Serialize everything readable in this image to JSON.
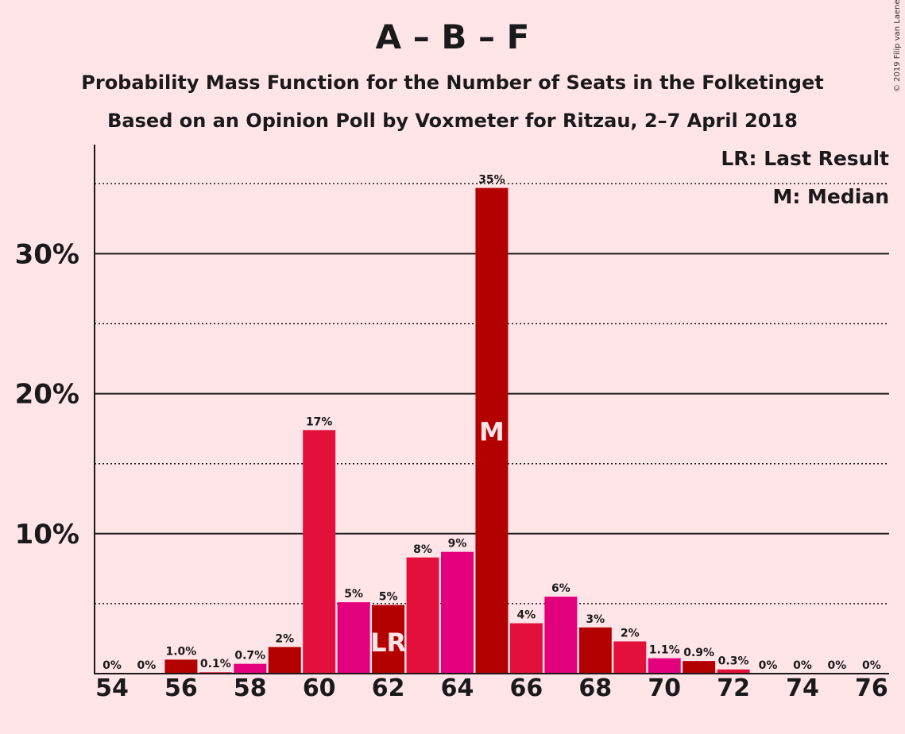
{
  "title": "A – B – F",
  "subtitle_1": "Probability Mass Function for the Number of Seats in the Folketinget",
  "subtitle_2": "Based on an Opinion Poll by Voxmeter for Ritzau, 2–7 April 2018",
  "copyright": "© 2019 Filip van Laenen",
  "legend": {
    "last_result": "LR: Last Result",
    "median": "M: Median"
  },
  "colors": {
    "background": "#FFE4E8",
    "dark_red": "#B30000",
    "crimson": "#E3103C",
    "magenta": "#E3007D"
  },
  "chart_data": {
    "type": "bar",
    "x": [
      54,
      55,
      56,
      57,
      58,
      59,
      60,
      61,
      62,
      63,
      64,
      65,
      66,
      67,
      68,
      69,
      70,
      71,
      72,
      73,
      74,
      75,
      76
    ],
    "values": [
      0,
      0,
      1.0,
      0.1,
      0.7,
      1.9,
      17.4,
      5.1,
      4.9,
      8.3,
      8.7,
      34.7,
      3.6,
      5.5,
      3.3,
      2.3,
      1.1,
      0.9,
      0.3,
      0,
      0,
      0,
      0
    ],
    "value_labels": [
      "0%",
      "0%",
      "1.0%",
      "0.1%",
      "0.7%",
      "2%",
      "17%",
      "5%",
      "5%",
      "8%",
      "9%",
      "35%",
      "4%",
      "6%",
      "3%",
      "2%",
      "1.1%",
      "0.9%",
      "0.3%",
      "0%",
      "0%",
      "0%",
      "0%"
    ],
    "bar_colors": [
      "#B30000",
      "#E3103C",
      "#B30000",
      "#E3103C",
      "#E3007D",
      "#B30000",
      "#E3103C",
      "#E3007D",
      "#B30000",
      "#E3103C",
      "#E3007D",
      "#B30000",
      "#E3103C",
      "#E3007D",
      "#B30000",
      "#E3103C",
      "#E3007D",
      "#B30000",
      "#E3103C",
      "#E3007D",
      "#B30000",
      "#E3103C",
      "#E3007D"
    ],
    "x_tick_labels": [
      "54",
      "56",
      "58",
      "60",
      "62",
      "64",
      "66",
      "68",
      "70",
      "72",
      "74",
      "76"
    ],
    "y_tick_labels": [
      "10%",
      "20%",
      "30%"
    ],
    "y_ticks": [
      10,
      20,
      30
    ],
    "y_minor_gridlines": [
      5,
      15,
      25,
      35
    ],
    "ylim": [
      0,
      37.8
    ],
    "markers": [
      {
        "x": 62,
        "label": "LR"
      },
      {
        "x": 65,
        "label": "M"
      }
    ]
  }
}
